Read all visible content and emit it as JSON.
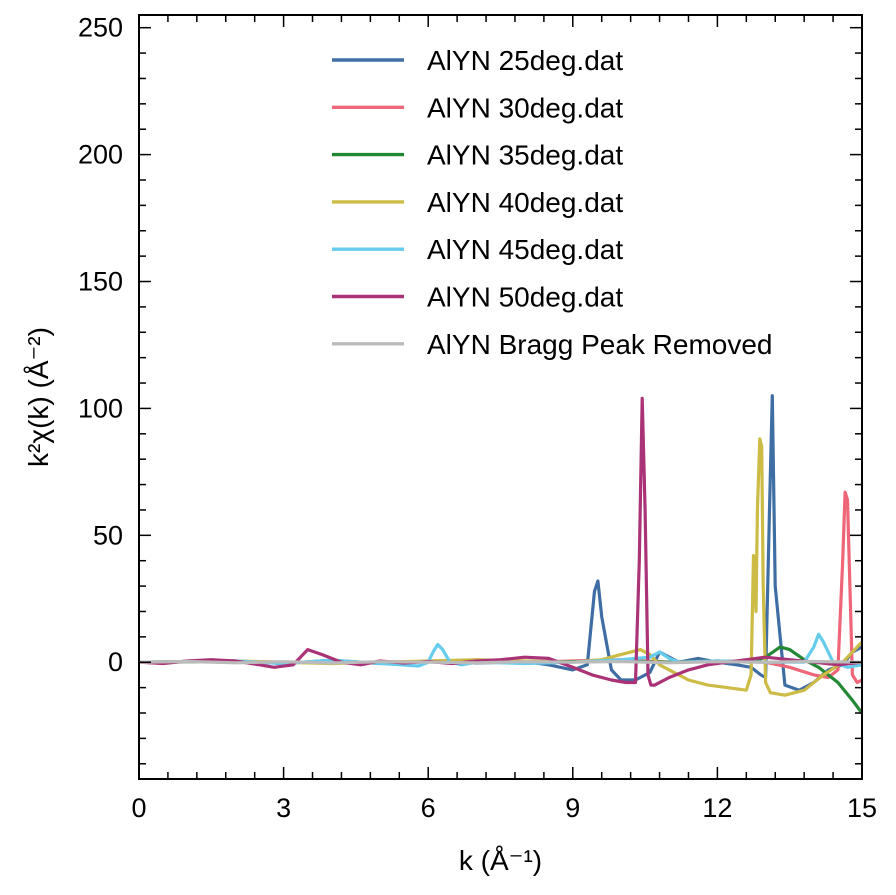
{
  "chart_data": {
    "type": "line",
    "xlabel": "k (Å⁻¹)",
    "ylabel": "k²χ(k) (Å⁻²)",
    "xlim": [
      0,
      15
    ],
    "ylim": [
      -46,
      255
    ],
    "x_ticks": [
      0,
      3,
      6,
      9,
      12,
      15
    ],
    "x_tick_labels": [
      "0",
      "3",
      "6",
      "9",
      "12",
      "15"
    ],
    "y_ticks": [
      0,
      50,
      100,
      150,
      200,
      250
    ],
    "y_tick_labels": [
      "0",
      "50",
      "100",
      "150",
      "200",
      "250"
    ],
    "grid": false,
    "legend_position": "top-center",
    "series": [
      {
        "name": "AlYN 25deg.dat",
        "color": "#3f6ea5",
        "x": [
          0,
          1,
          2,
          3,
          4,
          5,
          6,
          7,
          8,
          8.5,
          9.0,
          9.3,
          9.45,
          9.52,
          9.6,
          9.8,
          10.0,
          10.3,
          10.6,
          10.8,
          11.2,
          11.6,
          12.0,
          12.4,
          12.7,
          12.9,
          13.0,
          13.08,
          13.14,
          13.2,
          13.4,
          13.7,
          14.0,
          14.3,
          14.6,
          14.8,
          15.0
        ],
        "y": [
          0,
          0.3,
          0.5,
          -0.5,
          0.8,
          -0.5,
          0.3,
          -0.3,
          0.3,
          -1,
          -3,
          -1,
          28,
          32,
          18,
          -3,
          -7,
          -7,
          -4,
          4,
          0,
          1.5,
          0,
          -1,
          -2,
          -5,
          -6,
          60,
          105,
          30,
          -9,
          -11,
          -8,
          -3,
          -1,
          4,
          6
        ]
      },
      {
        "name": "AlYN 30deg.dat",
        "color": "#ee6677",
        "x": [
          0,
          2,
          4,
          6,
          8,
          9,
          10,
          11,
          12,
          13,
          13.5,
          14.0,
          14.3,
          14.5,
          14.6,
          14.65,
          14.7,
          14.75,
          14.8,
          14.9,
          15.0
        ],
        "y": [
          0,
          0.3,
          -0.2,
          0.3,
          0,
          0.5,
          1,
          0,
          0.5,
          0,
          -2,
          -5,
          -6,
          -3,
          40,
          67,
          64,
          30,
          -5,
          -8,
          -7
        ]
      },
      {
        "name": "AlYN 35deg.dat",
        "color": "#228833",
        "x": [
          0,
          2,
          4,
          6,
          8,
          10,
          11,
          12,
          12.7,
          13.0,
          13.3,
          13.5,
          13.8,
          14.1,
          14.5,
          14.8,
          15.0
        ],
        "y": [
          0,
          0.2,
          -0.2,
          0.2,
          0,
          0.5,
          0,
          0.5,
          0,
          2,
          6,
          5,
          1,
          -2,
          -8,
          -15,
          -20
        ]
      },
      {
        "name": "AlYN 40deg.dat",
        "color": "#ccbb44",
        "x": [
          0,
          2,
          4,
          6,
          7,
          8,
          9,
          9.6,
          10.0,
          10.4,
          10.6,
          10.8,
          11.0,
          11.4,
          11.8,
          12.2,
          12.6,
          12.7,
          12.75,
          12.78,
          12.8,
          12.83,
          12.88,
          12.92,
          12.95,
          13.0,
          13.1,
          13.4,
          13.8,
          14.2,
          14.6,
          14.8,
          15.0
        ],
        "y": [
          0,
          0.5,
          -0.5,
          0.5,
          1,
          0.5,
          0,
          1,
          3,
          5,
          3,
          -1,
          -3,
          -7,
          -9,
          -10,
          -11,
          -5,
          42,
          30,
          20,
          60,
          88,
          85,
          30,
          -8,
          -12,
          -13,
          -11,
          -5,
          0,
          4,
          8
        ]
      },
      {
        "name": "AlYN 45deg.dat",
        "color": "#66ccee",
        "x": [
          0,
          2,
          3,
          4,
          5,
          5.8,
          6.0,
          6.1,
          6.2,
          6.3,
          6.45,
          6.7,
          7,
          8,
          9,
          10,
          10.6,
          10.8,
          11.0,
          11.2,
          12,
          13,
          13.8,
          14.0,
          14.1,
          14.2,
          14.4,
          14.7,
          15.0
        ],
        "y": [
          0,
          0.5,
          -0.5,
          0.8,
          -0.5,
          -1.5,
          0,
          4,
          7,
          5,
          0,
          -1,
          0,
          -0.5,
          0,
          1,
          2,
          4,
          1.5,
          0,
          0.5,
          0,
          0,
          6,
          11,
          8,
          0,
          -2,
          -1
        ]
      },
      {
        "name": "AlYN 50deg.dat",
        "color": "#aa3377",
        "x": [
          0,
          0.5,
          1,
          1.5,
          2,
          2.5,
          2.8,
          3.2,
          3.5,
          3.8,
          4.2,
          4.6,
          5.0,
          5.5,
          6.0,
          6.5,
          7,
          7.5,
          8.0,
          8.5,
          9.0,
          9.4,
          9.8,
          10.1,
          10.3,
          10.38,
          10.44,
          10.5,
          10.56,
          10.62,
          10.7,
          11.0,
          11.4,
          11.8,
          12.2,
          12.6,
          13.0,
          13.5,
          14.0,
          14.5,
          15.0
        ],
        "y": [
          0,
          -0.5,
          0.5,
          1,
          0.5,
          -1,
          -2,
          -1,
          5,
          3,
          0,
          -1,
          0.5,
          -0.3,
          0.3,
          -0.5,
          0.5,
          1,
          2,
          1.5,
          -2,
          -5,
          -7,
          -8,
          -8,
          40,
          104,
          60,
          -5,
          -9,
          -9,
          -6,
          -3,
          -1,
          0,
          1,
          2,
          1,
          0,
          -1,
          0
        ]
      },
      {
        "name": "AlYN Bragg Peak Removed",
        "color": "#bbbbbb",
        "x": [
          0,
          1,
          2,
          3,
          4,
          5,
          6,
          7,
          8,
          9,
          10,
          11,
          12,
          13,
          14,
          15
        ],
        "y": [
          0,
          0.3,
          -0.2,
          0.2,
          -0.3,
          0.2,
          0,
          -0.2,
          0.2,
          0,
          0.3,
          -0.2,
          0.2,
          0,
          0.3,
          0
        ]
      }
    ]
  }
}
